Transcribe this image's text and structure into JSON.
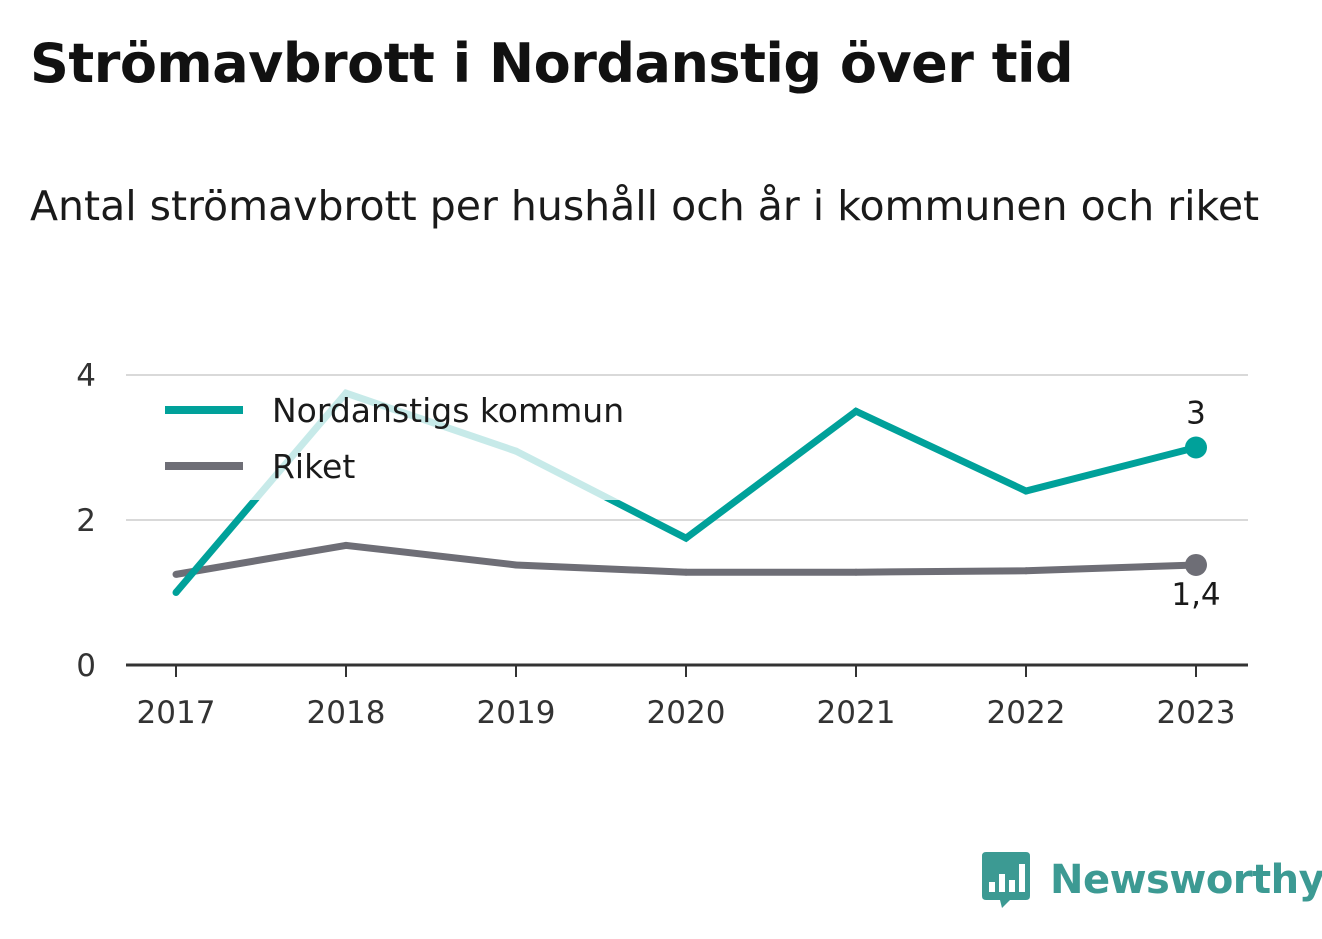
{
  "header": {
    "title": "Strömavbrott i Nordanstig över tid",
    "subtitle": "Antal strömavbrott per hushåll och år i kommunen och riket"
  },
  "brand": {
    "name": "Newsworthy",
    "icon": "bar-chart-speech-bubble-icon",
    "color": "#3c9a93"
  },
  "chart_data": {
    "type": "line",
    "categories": [
      "2017",
      "2018",
      "2019",
      "2020",
      "2021",
      "2022",
      "2023"
    ],
    "y_ticks": [
      "0",
      "2",
      "4"
    ],
    "ylim": [
      0,
      4
    ],
    "grid": true,
    "legend_position": "top-left",
    "series": [
      {
        "name": "Nordanstigs kommun",
        "color": "#00a19a",
        "values": [
          1.0,
          3.75,
          2.95,
          1.75,
          3.5,
          2.4,
          3.0
        ],
        "end_label": "3"
      },
      {
        "name": "Riket",
        "color": "#6e6e76",
        "values": [
          1.25,
          1.65,
          1.38,
          1.28,
          1.28,
          1.3,
          1.38
        ],
        "end_label": "1,4"
      }
    ]
  }
}
